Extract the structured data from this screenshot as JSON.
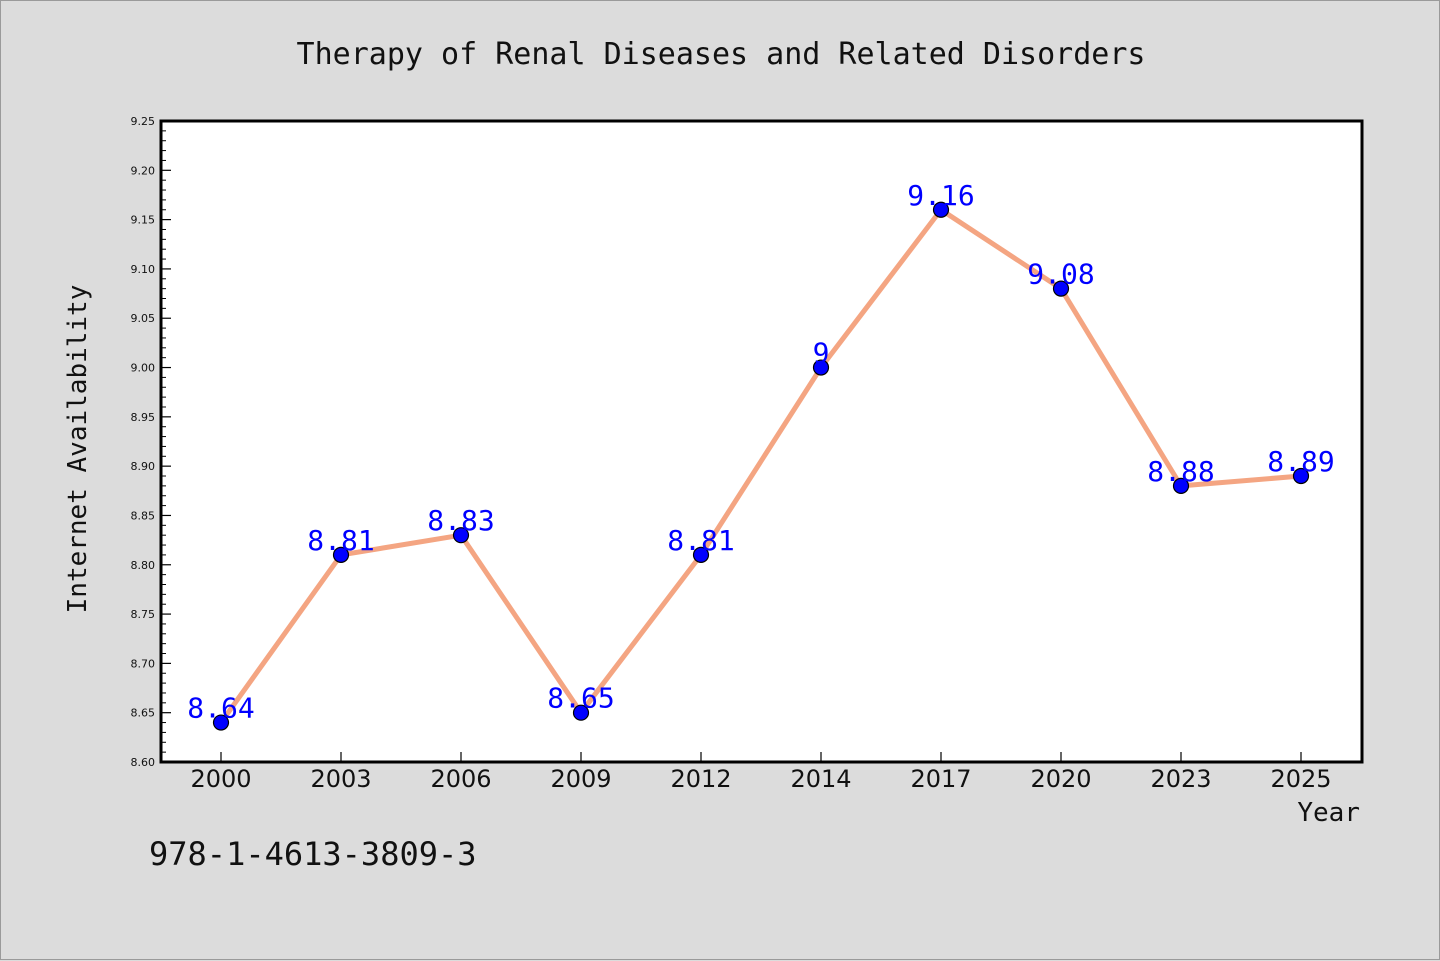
{
  "chart_data": {
    "type": "line",
    "title": "Therapy of Renal Diseases and Related Disorders",
    "xlabel": "Year",
    "ylabel": "Internet Availability",
    "categories": [
      "2000",
      "2003",
      "2006",
      "2009",
      "2012",
      "2014",
      "2017",
      "2020",
      "2023",
      "2025"
    ],
    "series": [
      {
        "values": [
          8.64,
          8.81,
          8.83,
          8.65,
          8.81,
          9.0,
          9.16,
          9.08,
          8.88,
          8.89
        ],
        "data_labels": [
          "8.64",
          "8.81",
          "8.83",
          "8.65",
          "8.81",
          "9",
          "9.16",
          "9.08",
          "8.88",
          "8.89"
        ],
        "line_color": "#f4a582",
        "marker_color": "#0000ff"
      }
    ],
    "ylim": [
      8.6,
      9.25
    ],
    "yticks": [
      "8.60",
      "8.65",
      "8.70",
      "8.75",
      "8.80",
      "8.85",
      "8.90",
      "8.95",
      "9.00",
      "9.05",
      "9.10",
      "9.15",
      "9.20",
      "9.25"
    ],
    "grid": false,
    "legend": "none"
  },
  "annotation": "978-1-4613-3809-3",
  "colors": {
    "background": "#dcdcdc",
    "plot_background": "#ffffff",
    "label_color": "#0000ff"
  }
}
